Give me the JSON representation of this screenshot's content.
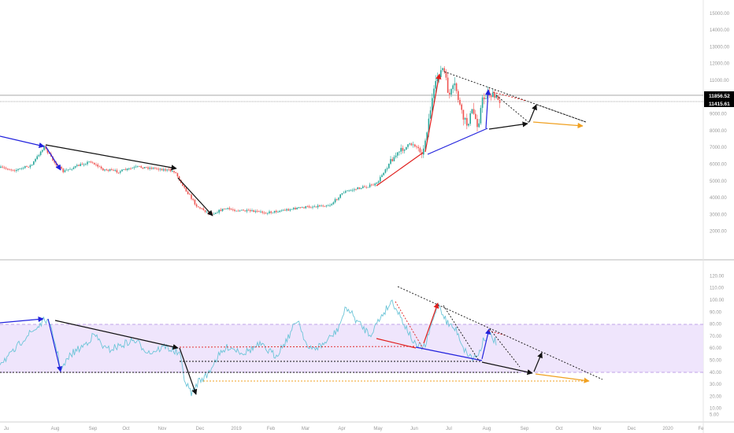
{
  "chart_data": [
    {
      "name": "price",
      "type": "candlestick",
      "ylim": [
        1000,
        17000
      ],
      "y_ticks": [
        "2000.00",
        "3000.00",
        "4000.00",
        "5000.00",
        "6000.00",
        "7000.00",
        "8000.00",
        "9000.00",
        "10000.00",
        "11000.00",
        "12000.00",
        "13000.00",
        "14000.00",
        "15000.00",
        "16000.00"
      ],
      "price_tags": [
        {
          "value": "11856.52",
          "bg": "#000000",
          "fg": "#ffffff"
        },
        {
          "value": "11415.61",
          "bg": "#000000",
          "fg": "#ffffff"
        }
      ],
      "gridlines": false
    },
    {
      "name": "oscillator",
      "type": "line",
      "ylim": [
        0,
        125
      ],
      "y_ticks": [
        "5.00",
        "10.00",
        "20.00",
        "30.00",
        "40.00",
        "50.00",
        "60.00",
        "70.00",
        "80.00",
        "90.00",
        "100.00",
        "110.00",
        "120.00"
      ],
      "band": [
        30,
        70
      ],
      "band_color": "#e9dcfb",
      "line_color": "#6cc5d8"
    }
  ],
  "x_ticks": [
    "Ju",
    "Aug",
    "Sep",
    "Oct",
    "Nov",
    "Dec",
    "2019",
    "Feb",
    "Mar",
    "Apr",
    "May",
    "Jun",
    "Jul",
    "Aug",
    "Sep",
    "Oct",
    "Nov",
    "Dec",
    "2020",
    "Fe"
  ],
  "colors": {
    "up": "#26a69a",
    "down": "#ef5350",
    "blue_arrow": "#2222dd",
    "red_arrow": "#e0201e",
    "black_arrow": "#111111",
    "orange_arrow": "#f0a020"
  }
}
